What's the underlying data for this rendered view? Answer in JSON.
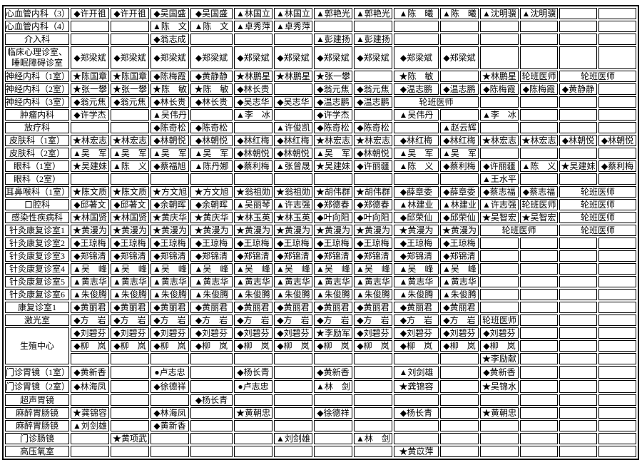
{
  "page": {
    "background_color": "#ffffff",
    "text_color": "#000000",
    "rotation_doctor_label": "轮班医师"
  },
  "table": {
    "columns": 14,
    "rows": [
      {
        "label": "心血管内科（3）",
        "cells": [
          "◆许开祖",
          "◆许开祖",
          "◆吴国盛",
          "◆吴国盛",
          "▲林国立",
          "▲林国立",
          "▲郭艳光",
          "▲郭艳光",
          "▲陈　曦",
          "▲陈　曦",
          "▲沈明骥",
          "▲沈明骥",
          "",
          ""
        ]
      },
      {
        "label": "心血管内科（4）",
        "cells": [
          "",
          "",
          "▲陈　文",
          "▲陈　文",
          "▲卓秀萍",
          "▲卓秀萍",
          "",
          "",
          "",
          "",
          "",
          "",
          "",
          ""
        ]
      },
      {
        "label": "介入科",
        "cells": [
          "",
          "",
          "◆翁志成",
          "",
          "",
          "",
          "▲彭建扬",
          "▲彭建扬",
          "",
          "",
          "",
          "",
          "",
          ""
        ]
      },
      {
        "label": "临床心理诊室、\n睡眠障碍诊室",
        "size": "tall",
        "cells": [
          "◆郑梁斌",
          "◆郑梁斌",
          "◆郑梁斌",
          "◆郑梁斌",
          "◆郑梁斌",
          "◆郑梁斌",
          "◆郑梁斌",
          "◆郑梁斌",
          "◆郑梁斌",
          "◆郑梁斌",
          "",
          "",
          "",
          ""
        ]
      },
      {
        "label": "神经内科（1室）",
        "cells": [
          "★陈国章",
          "★陈国章",
          "◆陈梅霞",
          "◆黄静静",
          "★林鹏星",
          "★林鹏星",
          "★张一攀",
          "",
          "★陈　敏",
          "",
          "★林鹏星",
          "轮班医师",
          {
            "text": "轮班医师",
            "colspan": 2
          }
        ]
      },
      {
        "label": "神经内科（2室）",
        "cells": [
          "★张一攀",
          "★张一攀",
          "★陈　敏",
          "★陈　敏",
          "◆林长贵",
          "",
          "◆翁元焦",
          "◆翁元焦",
          "◆温志鹏",
          "◆温志鹏",
          "◆陈梅霞",
          "◆陈梅霞",
          "◆黄静静",
          ""
        ]
      },
      {
        "label": "神经内科（3室）",
        "cells": [
          "◆翁元焦",
          "◆翁元焦",
          "◆林长贵",
          "◆林长贵",
          "◆吴志华",
          "◆吴志华",
          "◆温志鹏",
          "◆温志鹏",
          {
            "text": "轮班医师",
            "colspan": 2
          },
          "",
          "",
          "",
          ""
        ]
      },
      {
        "label": "肿瘤内科",
        "cells": [
          "◆许学杰",
          "",
          "▲吴伟丹",
          "",
          "▲李　冰",
          "",
          "◆许学杰",
          "",
          "▲吴伟丹",
          "",
          "▲李　冰",
          "",
          "",
          ""
        ]
      },
      {
        "label": "放疗科",
        "cells": [
          "",
          "",
          "◆陈奇松",
          "◆陈奇松",
          "",
          "▲许俊凯",
          "◆陈奇松",
          "◆陈奇松",
          "",
          "▲赵云辉",
          "",
          "",
          "",
          ""
        ]
      },
      {
        "label": "皮肤科（1室）",
        "cells": [
          "★林宏志",
          "★林宏志",
          "◆林朝悦",
          "◆林朝悦",
          "◆林红梅",
          "◆林红梅",
          "★林宏志",
          "★林宏志",
          "◆林红梅",
          "◆林红梅",
          "★林宏志",
          "★林宏志",
          "◆林朝悦",
          "◆林朝悦"
        ]
      },
      {
        "label": "皮肤科（2室）",
        "cells": [
          "▲吴　军",
          "▲吴　军",
          "▲吴　军",
          "▲吴　军",
          "◆林朝悦",
          "◆林朝悦",
          "▲吴　军",
          "◆林朝悦",
          "▲吴　军",
          "▲吴　军",
          "",
          "",
          "",
          ""
        ]
      },
      {
        "label": "眼科（1室）",
        "cells": [
          "★吴建妹",
          "▲陈　义",
          "◆蔡福旭",
          "▲陈丹娜",
          "◆蔡利梅",
          "▲张曾晟",
          "★吴建妹",
          "◆许丽疆",
          "▲陈　义",
          "◆蔡利梅",
          "◆许丽疆",
          "▲陈　义",
          "★吴建妹",
          "◆蔡利梅"
        ]
      },
      {
        "label": "眼科（2室）",
        "cells": [
          "",
          "",
          "",
          "",
          "",
          "",
          "",
          "",
          "",
          "",
          "▲王水平",
          "",
          "",
          ""
        ]
      },
      {
        "label": "耳鼻喉科（1室）",
        "cells": [
          "★陈文质",
          "★陈文质",
          "★方文旭",
          "★方文旭",
          "★翁祖勋",
          "★翁祖勋",
          "★胡伟群",
          "★胡伟群",
          "◆薛章委",
          "◆薛章委",
          "◆蔡志福",
          "◆蔡志福",
          {
            "text": "轮班医师",
            "colspan": 2
          }
        ]
      },
      {
        "label": "口腔科",
        "cells": [
          "◆邱著文",
          "◆邱著文",
          "◆余朝晖",
          "◆余朝晖",
          "▲吴丽琴",
          "▲许志强",
          "◆郑德春",
          "◆郑德春",
          "▲林建业",
          "▲林建业",
          "▲许志强",
          "轮班医师",
          {
            "text": "轮班医师",
            "colspan": 2
          }
        ]
      },
      {
        "label": "感染性疾病科",
        "cells": [
          "★林国贤",
          "★林国贤",
          "★黄庆华",
          "★黄庆华",
          "★林玉英",
          "★林玉英",
          "◆叶向阳",
          "◆叶向阳",
          "◆邱荣仙",
          "◆邱荣仙",
          "★吴智宏",
          "★吴智宏",
          {
            "text": "轮班医师",
            "colspan": 2
          }
        ]
      },
      {
        "label": "针灸康复诊室1",
        "cells": [
          "★黄漫为",
          "★黄漫为",
          "★黄漫为",
          "★黄漫为",
          "★黄漫为",
          "★黄漫为",
          "★黄漫为",
          "★黄漫为",
          "★黄漫为",
          "★黄漫为",
          {
            "text": "轮班医师",
            "colspan": 2
          },
          {
            "text": "轮班医师",
            "colspan": 2
          }
        ]
      },
      {
        "label": "针灸康复诊室2",
        "cells": [
          "◆王琼梅",
          "◆王琼梅",
          "◆王琼梅",
          "◆王琼梅",
          "◆王琼梅",
          "◆王琼梅",
          "◆王琼梅",
          "◆王琼梅",
          "◆王琼梅",
          "◆王琼梅",
          "",
          "",
          "",
          ""
        ]
      },
      {
        "label": "针灸康复诊室3",
        "cells": [
          "◆郑锦清",
          "◆郑锦清",
          "◆郑锦清",
          "◆郑锦清",
          "◆郑锦清",
          "◆郑锦清",
          "◆郑锦清",
          "◆郑锦清",
          "◆郑锦清",
          "◆郑锦清",
          "",
          "",
          "",
          ""
        ]
      },
      {
        "label": "针灸康复诊室4",
        "cells": [
          "▲吴　峰",
          "▲吴　峰",
          "▲吴　峰",
          "▲吴　峰",
          "▲吴　峰",
          "▲吴　峰",
          "▲吴　峰",
          "▲吴　峰",
          "▲吴　峰",
          "▲吴　峰",
          "",
          "",
          "",
          ""
        ]
      },
      {
        "label": "针灸康复诊室5",
        "cells": [
          "▲黄志华",
          "▲黄志华",
          "▲黄志华",
          "▲黄志华",
          "▲黄志华",
          "▲黄志华",
          "▲黄志华",
          "▲黄志华",
          "▲黄志华",
          "▲黄志华",
          "",
          "",
          "",
          ""
        ]
      },
      {
        "label": "针灸康复诊室6",
        "cells": [
          "▲朱俊腾",
          "▲朱俊腾",
          "▲朱俊腾",
          "▲朱俊腾",
          "▲朱俊腾",
          "▲朱俊腾",
          "▲朱俊腾",
          "▲朱俊腾",
          "▲朱俊腾",
          "▲朱俊腾",
          "",
          "",
          "",
          ""
        ]
      },
      {
        "label": "康复诊室1",
        "cells": [
          "◆黄丽君",
          "◆黄丽君",
          "◆黄丽君",
          "◆黄丽君",
          "◆黄丽君",
          "◆黄丽君",
          "◆黄丽君",
          "◆黄丽君",
          "◆黄丽君",
          "◆黄丽君",
          "",
          "",
          "",
          ""
        ]
      },
      {
        "label": "激光室",
        "cells": [
          "◆方　岩",
          "◆方　岩",
          "◆方　岩",
          "◆方　岩",
          "◆方　岩",
          "◆方　岩",
          "◆方　岩",
          "◆方　岩",
          "◆方　岩",
          "◆方　岩",
          "轮班医师",
          "",
          "",
          ""
        ]
      },
      {
        "label": "生殖中心",
        "label_rowspan": 3,
        "cells": [
          "◆刘碧芬",
          "◆刘碧芬",
          "◆刘碧芬",
          "◆刘碧芬",
          "◆刘碧芬",
          "◆刘碧芬",
          "★李励军",
          "◆刘碧芬",
          "◆刘碧芬",
          "◆刘碧芬",
          "◆刘碧芬",
          "",
          "",
          ""
        ]
      },
      {
        "label": null,
        "cells": [
          "◆柳　岚",
          "◆柳　岚",
          "◆柳　岚",
          "◆柳　岚",
          "◆柳　岚",
          "◆柳　岚",
          "◆柳　岚",
          "◆柳　岚",
          "◆柳　岚",
          "◆柳　岚",
          "◆柳　岚",
          "",
          "",
          ""
        ]
      },
      {
        "label": null,
        "cells": [
          "",
          "",
          "",
          "",
          "",
          "",
          "",
          "",
          "",
          "",
          "★李励献",
          "",
          "",
          ""
        ]
      },
      {
        "label": "门诊胃镜（1室）",
        "size": "med",
        "cells": [
          "◆黄新香",
          "",
          "●卢志忠",
          "",
          "◆杨长青",
          "",
          "◆黄新香",
          "",
          "▲刘剑雄",
          "",
          "◆黄新香",
          "",
          "",
          ""
        ]
      },
      {
        "label": "门诊胃镜（2室）",
        "size": "med",
        "cells": [
          "◆林海凤",
          "",
          "◆徐德祥",
          "",
          "●卢志忠",
          "",
          "▲林　剑",
          "",
          "★龚锦容",
          "",
          "★吴锦水",
          "",
          "",
          ""
        ]
      },
      {
        "label": "超声胃镜",
        "cells": [
          "",
          "",
          "",
          "◆杨长青",
          "",
          "",
          "",
          "",
          "",
          "",
          "",
          "",
          "",
          ""
        ]
      },
      {
        "label": "麻醉胃肠镜",
        "cells": [
          "★龚锦容",
          "",
          "◆林海凤",
          "",
          "★黄朝忠",
          "",
          "◆徐德祥",
          "",
          "◆杨长青",
          "",
          "★黄朝忠",
          "",
          "",
          ""
        ]
      },
      {
        "label": "麻醉胃肠镜",
        "cells": [
          "▲刘剑雄",
          "",
          "◆黄新香",
          "",
          "",
          "",
          "",
          "",
          "",
          "",
          "",
          "",
          "",
          ""
        ]
      },
      {
        "label": "门诊肠镜",
        "cells": [
          "",
          "★黄项武",
          "",
          "",
          "",
          "▲刘剑雄",
          "",
          "▲林　剑",
          "",
          "",
          "",
          "",
          "",
          ""
        ]
      },
      {
        "label": "高压氧室",
        "cells": [
          "",
          "",
          "",
          "",
          "",
          "",
          "",
          "",
          "★黄苡萍",
          "",
          "",
          "",
          "",
          ""
        ]
      }
    ]
  }
}
